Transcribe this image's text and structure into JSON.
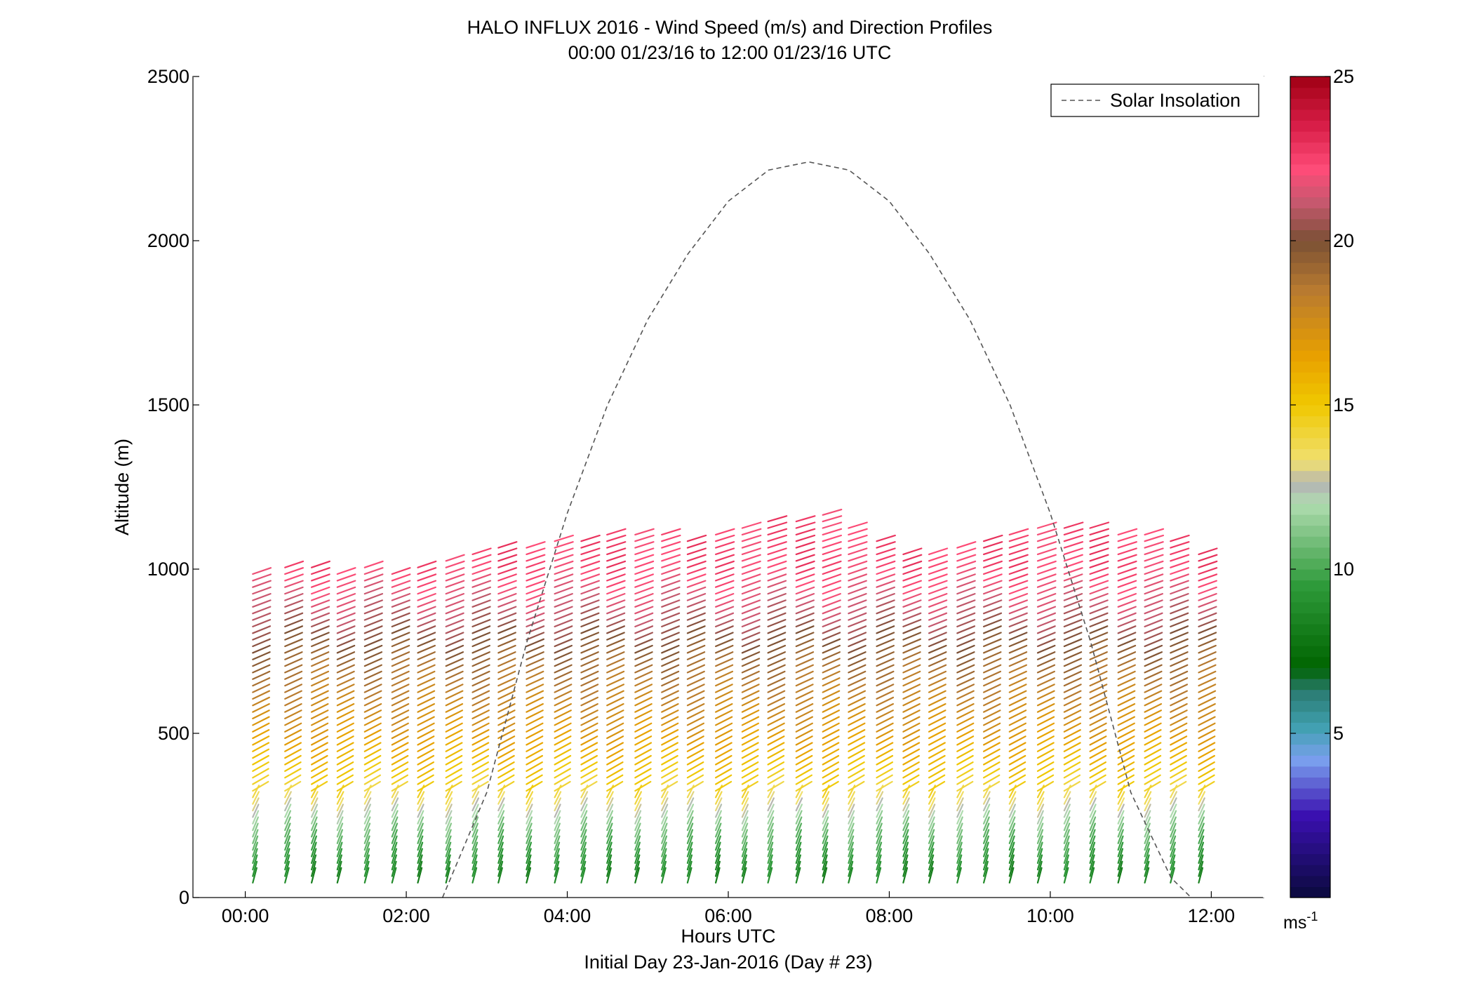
{
  "chart_data": {
    "type": "scatter",
    "title": "HALO INFLUX 2016 - Wind Speed (m/s) and Direction Profiles",
    "subtitle": "00:00 01/23/16 to 12:00 01/23/16  UTC",
    "xlabel": "Hours UTC",
    "footer": "Initial Day 23-Jan-2016 (Day # 23)",
    "ylabel": "Altitude (m)",
    "xlim": [
      -0.65,
      12.65
    ],
    "ylim": [
      0,
      2500
    ],
    "x_ticks": [
      0,
      2,
      4,
      6,
      8,
      10,
      12
    ],
    "x_tick_labels": [
      "00:00",
      "02:00",
      "04:00",
      "06:00",
      "08:00",
      "10:00",
      "12:00"
    ],
    "y_ticks": [
      0,
      500,
      1000,
      1500,
      2000,
      2500
    ],
    "y_tick_labels": [
      "0",
      "500",
      "1000",
      "1500",
      "2000",
      "2500"
    ],
    "legend": {
      "label": "Solar Insolation",
      "placement": "top-right"
    },
    "solar_insolation": {
      "style": "dashed",
      "color": "#555555",
      "x": [
        2.45,
        3.0,
        3.5,
        4.0,
        4.5,
        5.0,
        5.5,
        6.0,
        6.5,
        7.0,
        7.5,
        8.0,
        8.5,
        9.0,
        9.5,
        10.0,
        10.5,
        11.0,
        11.5,
        11.75
      ],
      "y": [
        0,
        320,
        780,
        1170,
        1500,
        1760,
        1960,
        2120,
        2215,
        2240,
        2215,
        2120,
        1960,
        1760,
        1500,
        1170,
        780,
        320,
        60,
        0
      ]
    },
    "colorbar": {
      "label": "ms",
      "label_superscript": "-1",
      "range": [
        0,
        25
      ],
      "ticks": [
        5,
        10,
        15,
        20,
        25
      ],
      "tick_labels": [
        "5",
        "10",
        "15",
        "20",
        "25"
      ],
      "stops": [
        {
          "v": 0,
          "c": "#0a0a3c"
        },
        {
          "v": 2.5,
          "c": "#3a10b0"
        },
        {
          "v": 4.2,
          "c": "#7aa0ee"
        },
        {
          "v": 5.2,
          "c": "#40a0b0"
        },
        {
          "v": 6.3,
          "c": "#2a7a70"
        },
        {
          "v": 7.0,
          "c": "#006400"
        },
        {
          "v": 9.5,
          "c": "#2e9a3a"
        },
        {
          "v": 12.0,
          "c": "#b0dcb0"
        },
        {
          "v": 12.6,
          "c": "#b4b4b4"
        },
        {
          "v": 13.3,
          "c": "#f0e070"
        },
        {
          "v": 15.0,
          "c": "#f0c800"
        },
        {
          "v": 16.5,
          "c": "#e8a000"
        },
        {
          "v": 18.5,
          "c": "#b87a30"
        },
        {
          "v": 20.0,
          "c": "#7a5035"
        },
        {
          "v": 21.2,
          "c": "#c85870"
        },
        {
          "v": 22.2,
          "c": "#ff4c78"
        },
        {
          "v": 23.5,
          "c": "#d81e48"
        },
        {
          "v": 25.0,
          "c": "#a00014"
        }
      ]
    },
    "profile_times_hours": [
      0.05,
      0.45,
      0.78,
      1.1,
      1.44,
      1.78,
      2.1,
      2.45,
      2.78,
      3.1,
      3.45,
      3.8,
      4.13,
      4.45,
      4.8,
      5.13,
      5.45,
      5.8,
      6.13,
      6.45,
      6.8,
      7.13,
      7.45,
      7.8,
      8.13,
      8.45,
      8.8,
      9.13,
      9.45,
      9.8,
      10.13,
      10.45,
      10.8,
      11.13,
      11.45,
      11.8
    ],
    "profile_tops_m": [
      990,
      1010,
      1010,
      1000,
      1010,
      990,
      1010,
      1030,
      1050,
      1070,
      1080,
      1090,
      1100,
      1120,
      1110,
      1110,
      1100,
      1120,
      1140,
      1150,
      1160,
      1170,
      1140,
      1100,
      1050,
      1060,
      1080,
      1100,
      1120,
      1140,
      1140,
      1130,
      1120,
      1120,
      1090,
      1050
    ],
    "wind_speed_by_altitude": [
      {
        "altitude_m": 50,
        "speed_ms": 8.5
      },
      {
        "altitude_m": 200,
        "speed_ms": 11.0
      },
      {
        "altitude_m": 300,
        "speed_ms": 14.0
      },
      {
        "altitude_m": 500,
        "speed_ms": 17.0
      },
      {
        "altitude_m": 700,
        "speed_ms": 19.0
      },
      {
        "altitude_m": 850,
        "speed_ms": 21.0
      },
      {
        "altitude_m": 1000,
        "speed_ms": 22.5
      }
    ]
  }
}
